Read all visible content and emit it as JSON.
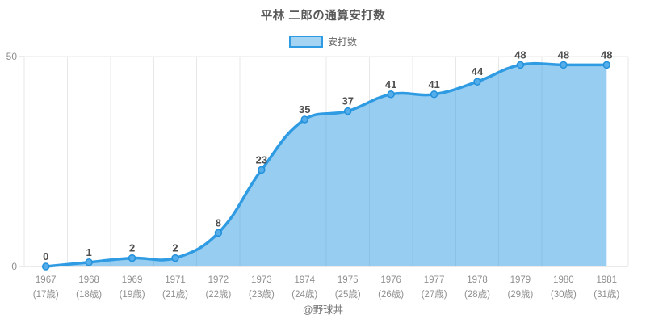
{
  "chart_data": {
    "type": "area",
    "title": "平林 二郎の通算安打数",
    "legend": [
      {
        "label": "安打数"
      }
    ],
    "x": [
      {
        "year": "1967",
        "age": "(17歳)"
      },
      {
        "year": "1968",
        "age": "(18歳)"
      },
      {
        "year": "1969",
        "age": "(19歳)"
      },
      {
        "year": "1971",
        "age": "(21歳)"
      },
      {
        "year": "1972",
        "age": "(22歳)"
      },
      {
        "year": "1973",
        "age": "(23歳)"
      },
      {
        "year": "1974",
        "age": "(24歳)"
      },
      {
        "year": "1975",
        "age": "(25歳)"
      },
      {
        "year": "1976",
        "age": "(26歳)"
      },
      {
        "year": "1977",
        "age": "(27歳)"
      },
      {
        "year": "1978",
        "age": "(28歳)"
      },
      {
        "year": "1979",
        "age": "(29歳)"
      },
      {
        "year": "1980",
        "age": "(30歳)"
      },
      {
        "year": "1981",
        "age": "(31歳)"
      }
    ],
    "values": [
      0,
      1,
      2,
      2,
      8,
      23,
      35,
      37,
      41,
      41,
      44,
      48,
      48,
      48
    ],
    "ylim": [
      0,
      50
    ],
    "y_ticks": [
      0,
      50
    ],
    "grid": true,
    "legend_position": "top-center",
    "colors": {
      "line": "#2f9be3",
      "fill": "rgba(47,155,227,0.5)",
      "marker_fill": "#55ade9",
      "marker_stroke": "#2391dc",
      "grid": "#e7e7e7",
      "axis": "#d6d6d6",
      "value_label": "#4f4f4f",
      "tick_label": "#8f8f8f"
    }
  },
  "footer": {
    "credit": "@野球丼"
  }
}
